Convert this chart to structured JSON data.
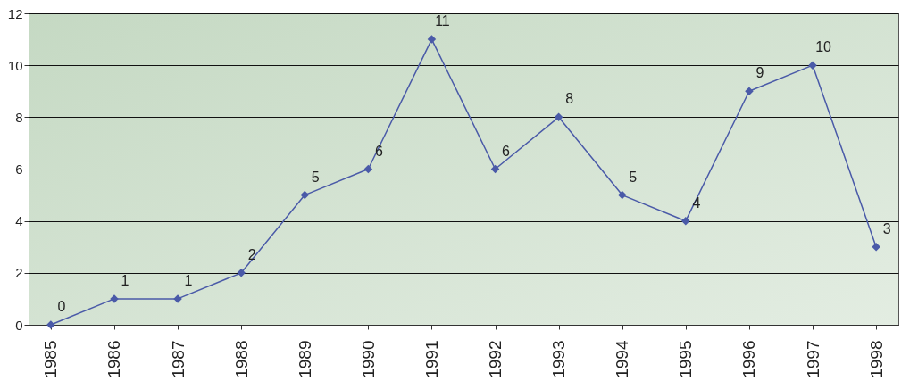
{
  "chart_data": {
    "type": "line",
    "categories": [
      "1985",
      "1986",
      "1987",
      "1988",
      "1989",
      "1990",
      "1991",
      "1992",
      "1993",
      "1994",
      "1995",
      "1996",
      "1997",
      "1998"
    ],
    "series": [
      {
        "color": "#4a5aa8",
        "values": [
          0,
          1,
          1,
          2,
          5,
          6,
          11,
          6,
          8,
          5,
          4,
          9,
          10,
          3
        ]
      }
    ],
    "ylim": [
      0,
      12
    ],
    "yticks": [
      0,
      2,
      4,
      6,
      8,
      10,
      12
    ],
    "grid": "y",
    "legend": false,
    "marker": "diamond",
    "line_style": "solid",
    "data_labels": true
  }
}
